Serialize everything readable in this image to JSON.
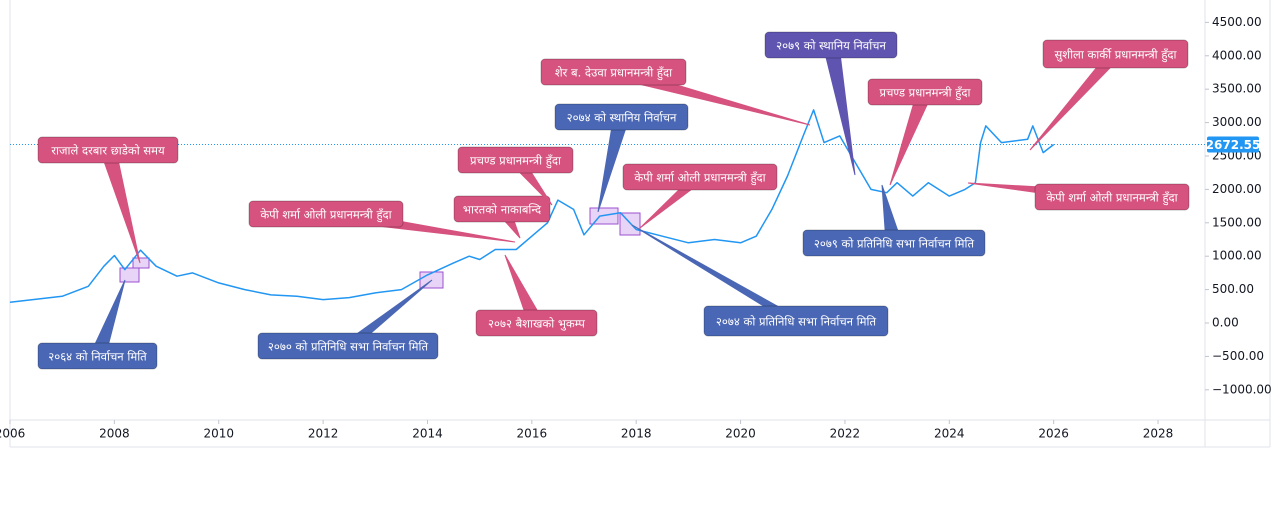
{
  "chart_data": {
    "type": "line",
    "color": "#2196f3",
    "x": [
      2006.0,
      2007.0,
      2007.5,
      2007.8,
      2008.0,
      2008.2,
      2008.5,
      2008.8,
      2009.2,
      2009.5,
      2010.0,
      2010.5,
      2011.0,
      2011.5,
      2012.0,
      2012.5,
      2013.0,
      2013.5,
      2014.0,
      2014.5,
      2014.8,
      2015.0,
      2015.3,
      2015.7,
      2016.0,
      2016.3,
      2016.5,
      2016.8,
      2017.0,
      2017.3,
      2017.7,
      2018.0,
      2018.5,
      2019.0,
      2019.5,
      2020.0,
      2020.3,
      2020.6,
      2020.9,
      2021.2,
      2021.4,
      2021.6,
      2021.9,
      2022.2,
      2022.5,
      2022.8,
      2023.0,
      2023.3,
      2023.6,
      2024.0,
      2024.3,
      2024.5,
      2024.6,
      2024.7,
      2025.0,
      2025.5,
      2025.6,
      2025.8,
      2026.0
    ],
    "values": [
      310,
      400,
      550,
      850,
      1010,
      800,
      1090,
      850,
      700,
      750,
      600,
      500,
      420,
      400,
      350,
      380,
      450,
      500,
      720,
      900,
      1000,
      950,
      1100,
      1100,
      1300,
      1500,
      1840,
      1700,
      1320,
      1600,
      1650,
      1400,
      1300,
      1200,
      1250,
      1200,
      1300,
      1700,
      2200,
      2800,
      3190,
      2700,
      2800,
      2400,
      2000,
      1950,
      2100,
      1900,
      2100,
      1900,
      2000,
      2100,
      2700,
      2950,
      2700,
      2750,
      2950,
      2550,
      2672.55
    ],
    "xlim": [
      2006,
      2028.9
    ],
    "xticks": [
      2006,
      2008,
      2010,
      2012,
      2014,
      2016,
      2018,
      2020,
      2022,
      2024,
      2026,
      2028
    ],
    "ylim": [
      -1452,
      4835
    ],
    "yticks": [
      {
        "value": -1000,
        "label": "−1000.00"
      },
      {
        "value": -500,
        "label": "−500.00"
      },
      {
        "value": 0,
        "label": "0.00"
      },
      {
        "value": 500,
        "label": "500.00"
      },
      {
        "value": 1000,
        "label": "1000.00"
      },
      {
        "value": 1500,
        "label": "1500.00"
      },
      {
        "value": 2000,
        "label": "2000.00"
      },
      {
        "value": 2500,
        "label": "2500.00"
      },
      {
        "value": 3000,
        "label": "3000.00"
      },
      {
        "value": 3500,
        "label": "3500.00"
      },
      {
        "value": 4000,
        "label": "4000.00"
      },
      {
        "value": 4500,
        "label": "4500.00"
      }
    ],
    "annotations": [
      {
        "text": "राजाले दरबार छाडेको समय",
        "color": "#d6527f"
      },
      {
        "text": "२०६४ को निर्वाचन मिति",
        "color": "#4a67b5"
      },
      {
        "text": "केपी शर्मा ओली प्रधानमन्त्री हुँदा",
        "color": "#d6527f"
      },
      {
        "text": "२०७० को प्रतिनिधि सभा निर्वाचन मिति",
        "color": "#4a67b5"
      },
      {
        "text": "भारतको नाकाबन्दि",
        "color": "#d6527f"
      },
      {
        "text": "प्रचण्ड प्रधानमन्त्री हुँदा",
        "color": "#d6527f"
      },
      {
        "text": "२०७२ बैशाखको भुकम्प",
        "color": "#d6527f"
      },
      {
        "text": "२०७४ को स्थानिय निर्वाचन",
        "color": "#4a67b5"
      },
      {
        "text": "शेर ब. देउवा प्रधानमन्त्री हुँदा",
        "color": "#d6527f"
      },
      {
        "text": "केपी शर्मा ओली प्रधानमन्त्री हुँदा",
        "color": "#d6527f"
      },
      {
        "text": "२०७४ को  प्रतिनिधि सभा निर्वाचन मिति",
        "color": "#4a67b5"
      },
      {
        "text": "२०७९ को स्थानिय निर्वाचन",
        "color": "#5f55b0"
      },
      {
        "text": "प्रचण्ड प्रधानमन्त्री हुँदा",
        "color": "#d6527f"
      },
      {
        "text": "२०७९ को प्रतिनिधि सभा निर्वाचन मिति",
        "color": "#4a67b5"
      },
      {
        "text": "सुशीला कार्की प्रधानमन्त्री हुँदा",
        "color": "#d6527f"
      },
      {
        "text": "केपी शर्मा ओली प्रधानमन्त्री हुँदा",
        "color": "#d6527f"
      }
    ]
  }
}
